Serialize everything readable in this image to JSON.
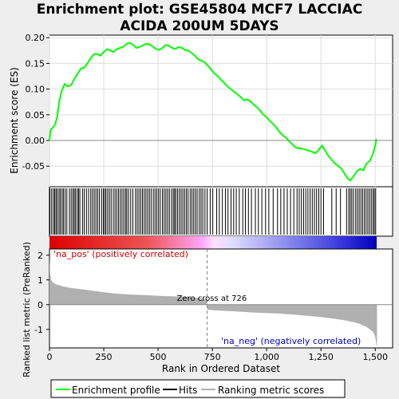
{
  "title_lines": [
    "Enrichment plot: GSE45804 MCF7 LACCIAC",
    "ACIDA 200UM 5DAYS"
  ],
  "chart_data": [
    {
      "type": "line",
      "panel": "running-enrichment-score",
      "ylabel": "Enrichment score (ES)",
      "xlim": [
        0,
        1580
      ],
      "ylim": [
        -0.09,
        0.205
      ],
      "yticks": [
        -0.05,
        0.0,
        0.05,
        0.1,
        0.15,
        0.2
      ],
      "ytick_labels": [
        "-0.05",
        "0.00",
        "0.05",
        "0.10",
        "0.15",
        "0.20"
      ],
      "grid": true,
      "line_color": "#00ff00",
      "points": [
        [
          0,
          0.0
        ],
        [
          5,
          0.02
        ],
        [
          15,
          0.025
        ],
        [
          25,
          0.03
        ],
        [
          35,
          0.045
        ],
        [
          45,
          0.075
        ],
        [
          55,
          0.095
        ],
        [
          70,
          0.11
        ],
        [
          85,
          0.105
        ],
        [
          100,
          0.108
        ],
        [
          115,
          0.12
        ],
        [
          130,
          0.13
        ],
        [
          145,
          0.14
        ],
        [
          160,
          0.142
        ],
        [
          175,
          0.15
        ],
        [
          190,
          0.16
        ],
        [
          205,
          0.168
        ],
        [
          220,
          0.168
        ],
        [
          235,
          0.165
        ],
        [
          250,
          0.172
        ],
        [
          265,
          0.178
        ],
        [
          280,
          0.175
        ],
        [
          295,
          0.172
        ],
        [
          310,
          0.178
        ],
        [
          325,
          0.18
        ],
        [
          340,
          0.182
        ],
        [
          355,
          0.188
        ],
        [
          370,
          0.19
        ],
        [
          385,
          0.186
        ],
        [
          400,
          0.18
        ],
        [
          415,
          0.182
        ],
        [
          430,
          0.185
        ],
        [
          445,
          0.188
        ],
        [
          460,
          0.187
        ],
        [
          475,
          0.183
        ],
        [
          490,
          0.178
        ],
        [
          505,
          0.176
        ],
        [
          520,
          0.18
        ],
        [
          535,
          0.186
        ],
        [
          550,
          0.184
        ],
        [
          565,
          0.18
        ],
        [
          580,
          0.178
        ],
        [
          595,
          0.182
        ],
        [
          610,
          0.18
        ],
        [
          625,
          0.176
        ],
        [
          640,
          0.175
        ],
        [
          655,
          0.17
        ],
        [
          670,
          0.165
        ],
        [
          685,
          0.158
        ],
        [
          700,
          0.155
        ],
        [
          715,
          0.152
        ],
        [
          730,
          0.145
        ],
        [
          745,
          0.138
        ],
        [
          760,
          0.13
        ],
        [
          775,
          0.125
        ],
        [
          790,
          0.118
        ],
        [
          805,
          0.112
        ],
        [
          820,
          0.105
        ],
        [
          835,
          0.1
        ],
        [
          850,
          0.095
        ],
        [
          865,
          0.09
        ],
        [
          880,
          0.085
        ],
        [
          895,
          0.078
        ],
        [
          910,
          0.08
        ],
        [
          925,
          0.076
        ],
        [
          940,
          0.07
        ],
        [
          955,
          0.065
        ],
        [
          970,
          0.058
        ],
        [
          985,
          0.05
        ],
        [
          1000,
          0.045
        ],
        [
          1015,
          0.038
        ],
        [
          1030,
          0.032
        ],
        [
          1045,
          0.025
        ],
        [
          1060,
          0.016
        ],
        [
          1075,
          0.01
        ],
        [
          1090,
          0.005
        ],
        [
          1105,
          -0.002
        ],
        [
          1120,
          -0.008
        ],
        [
          1135,
          -0.014
        ],
        [
          1150,
          -0.015
        ],
        [
          1165,
          -0.016
        ],
        [
          1180,
          -0.018
        ],
        [
          1195,
          -0.02
        ],
        [
          1210,
          -0.022
        ],
        [
          1225,
          -0.025
        ],
        [
          1240,
          -0.018
        ],
        [
          1255,
          -0.01
        ],
        [
          1270,
          -0.02
        ],
        [
          1285,
          -0.03
        ],
        [
          1300,
          -0.038
        ],
        [
          1315,
          -0.045
        ],
        [
          1330,
          -0.05
        ],
        [
          1345,
          -0.055
        ],
        [
          1360,
          -0.065
        ],
        [
          1375,
          -0.075
        ],
        [
          1385,
          -0.078
        ],
        [
          1400,
          -0.07
        ],
        [
          1415,
          -0.06
        ],
        [
          1430,
          -0.055
        ],
        [
          1445,
          -0.058
        ],
        [
          1460,
          -0.045
        ],
        [
          1475,
          -0.04
        ],
        [
          1490,
          -0.025
        ],
        [
          1500,
          -0.01
        ],
        [
          1505,
          0.003
        ]
      ]
    },
    {
      "type": "scatter",
      "panel": "hits",
      "legend_name": "Hits",
      "positions": [
        2,
        10,
        18,
        24,
        30,
        36,
        44,
        50,
        58,
        64,
        72,
        80,
        92,
        100,
        108,
        114,
        120,
        128,
        134,
        140,
        152,
        160,
        170,
        180,
        190,
        198,
        206,
        214,
        222,
        230,
        240,
        248,
        254,
        260,
        268,
        276,
        284,
        294,
        302,
        310,
        318,
        326,
        334,
        342,
        350,
        356,
        364,
        374,
        384,
        396,
        404,
        412,
        420,
        428,
        436,
        444,
        452,
        460,
        468,
        478,
        486,
        494,
        502,
        510,
        520,
        528,
        536,
        544,
        552,
        562,
        570,
        576,
        582,
        590,
        598,
        606,
        614,
        622,
        630,
        638,
        648,
        656,
        664,
        672,
        680,
        690,
        698,
        706,
        716,
        726,
        740,
        752,
        770,
        782,
        796,
        810,
        822,
        836,
        848,
        860,
        874,
        890,
        902,
        916,
        930,
        948,
        962,
        978,
        995,
        1010,
        1030,
        1050,
        1065,
        1080,
        1095,
        1110,
        1125,
        1140,
        1150,
        1160,
        1170,
        1180,
        1190,
        1200,
        1210,
        1220,
        1230,
        1240,
        1250,
        1262,
        1300,
        1320,
        1340,
        1368,
        1378,
        1385,
        1392,
        1400,
        1410,
        1418,
        1426,
        1434,
        1442,
        1450,
        1458,
        1466,
        1474,
        1482,
        1490,
        1496,
        1502
      ]
    },
    {
      "type": "area",
      "panel": "ranked-list-metric",
      "ylabel": "Ranked list metric (PreRanked)",
      "xlabel": "Rank in Ordered Dataset",
      "xlim": [
        0,
        1580
      ],
      "ylim": [
        -1.75,
        2.25
      ],
      "xticks": [
        0,
        250,
        500,
        750,
        1000,
        1250,
        1500
      ],
      "xtick_labels": [
        "0",
        "250",
        "500",
        "750",
        "1,000",
        "1,250",
        "1,500"
      ],
      "yticks": [
        -1,
        0,
        1,
        2
      ],
      "ytick_labels": [
        "-1",
        "0",
        "1",
        "2"
      ],
      "fill_color": "#b0b0b0",
      "points": [
        [
          0,
          1.9
        ],
        [
          3,
          1.3
        ],
        [
          8,
          1.0
        ],
        [
          15,
          0.9
        ],
        [
          30,
          0.82
        ],
        [
          60,
          0.74
        ],
        [
          100,
          0.67
        ],
        [
          150,
          0.62
        ],
        [
          200,
          0.56
        ],
        [
          250,
          0.5
        ],
        [
          300,
          0.45
        ],
        [
          350,
          0.42
        ],
        [
          400,
          0.4
        ],
        [
          450,
          0.38
        ],
        [
          500,
          0.36
        ],
        [
          550,
          0.34
        ],
        [
          600,
          0.33
        ],
        [
          650,
          0.3
        ],
        [
          700,
          0.25
        ],
        [
          724,
          0.2
        ],
        [
          726,
          0.0
        ],
        [
          727,
          -0.2
        ],
        [
          760,
          -0.23
        ],
        [
          850,
          -0.27
        ],
        [
          950,
          -0.32
        ],
        [
          1050,
          -0.36
        ],
        [
          1150,
          -0.42
        ],
        [
          1250,
          -0.5
        ],
        [
          1320,
          -0.58
        ],
        [
          1370,
          -0.65
        ],
        [
          1420,
          -0.75
        ],
        [
          1460,
          -0.9
        ],
        [
          1490,
          -1.1
        ],
        [
          1500,
          -1.3
        ],
        [
          1505,
          -1.6
        ],
        [
          1508,
          -1.7
        ]
      ],
      "zero_cross_position": 726,
      "annotations": {
        "zero_cross": "Zero cross at 726",
        "pos_label": "'na_pos' (positively correlated)",
        "neg_label": "'na_neg' (negatively correlated)"
      },
      "pos_label_color": "#cc0000",
      "neg_label_color": "#0000cc"
    }
  ],
  "legend": [
    {
      "name": "Enrichment profile",
      "color": "#00ff00"
    },
    {
      "name": "Hits",
      "color": "#000000"
    },
    {
      "name": "Ranking metric scores",
      "color": "#b0b0b0"
    }
  ]
}
